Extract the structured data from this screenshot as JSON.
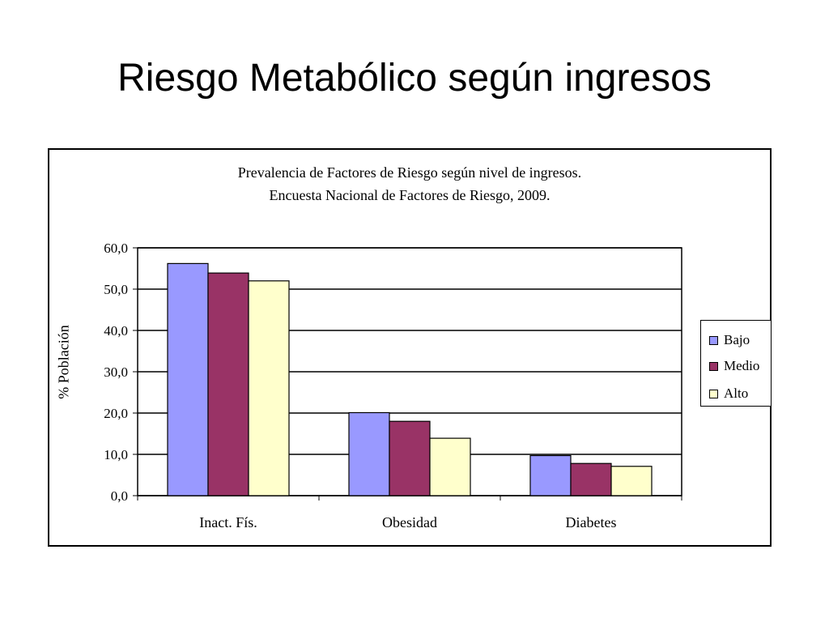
{
  "slide": {
    "title": "Riesgo Metabólico según ingresos"
  },
  "chart_data": {
    "type": "bar",
    "title_lines": [
      "Prevalencia de Factores de Riesgo según nivel de ingresos.",
      "Encuesta Nacional de Factores de Riesgo, 2009."
    ],
    "xlabel": "",
    "ylabel": "% Población",
    "ylim": [
      0,
      60
    ],
    "yticks": [
      "0,0",
      "10,0",
      "20,0",
      "30,0",
      "40,0",
      "50,0",
      "60,0"
    ],
    "ytick_values": [
      0,
      10,
      20,
      30,
      40,
      50,
      60
    ],
    "grid": true,
    "legend_position": "right",
    "categories": [
      "Inact. Fís.",
      "Obesidad",
      "Diabetes"
    ],
    "series": [
      {
        "name": "Bajo",
        "color": "#9999ff",
        "values": [
          56.2,
          20.1,
          9.7
        ]
      },
      {
        "name": "Medio",
        "color": "#993366",
        "values": [
          53.9,
          18.0,
          7.8
        ]
      },
      {
        "name": "Alto",
        "color": "#ffffcc",
        "values": [
          52.0,
          13.9,
          7.1
        ]
      }
    ]
  }
}
